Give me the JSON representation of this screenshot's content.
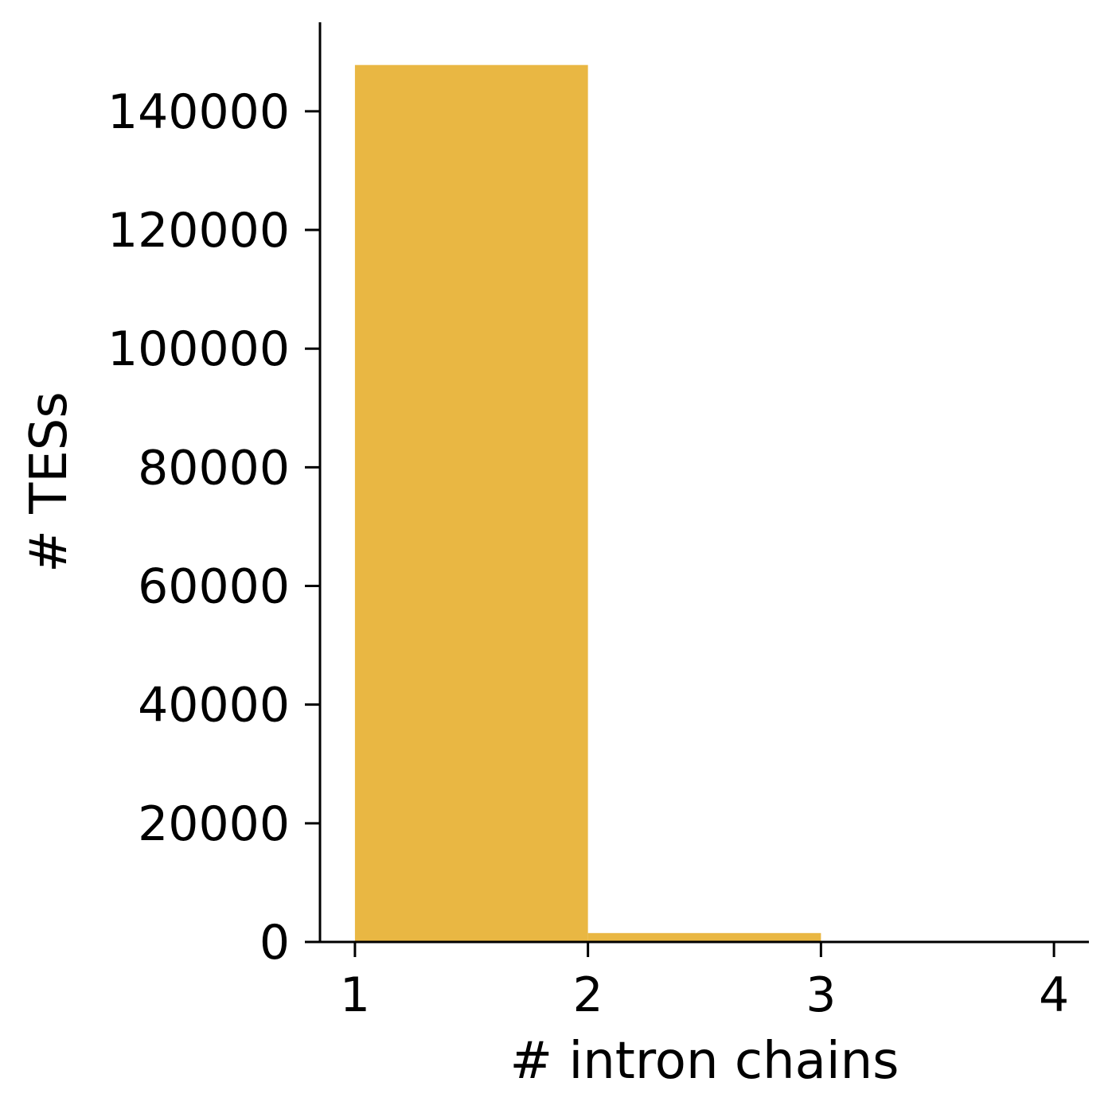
{
  "chart_data": {
    "type": "histogram",
    "xlabel": "# intron chains",
    "ylabel": "# TESs",
    "bins": [
      {
        "start": 1,
        "end": 2,
        "value": 147800
      },
      {
        "start": 2,
        "end": 3,
        "value": 1500
      },
      {
        "start": 3,
        "end": 4,
        "value": 0
      }
    ],
    "xlim": [
      0.85,
      4.15
    ],
    "ylim": [
      0,
      155000
    ],
    "x_ticks": [
      1,
      2,
      3,
      4
    ],
    "x_tick_labels": [
      "1",
      "2",
      "3",
      "4"
    ],
    "y_ticks": [
      0,
      20000,
      40000,
      60000,
      80000,
      100000,
      120000,
      140000
    ],
    "y_tick_labels": [
      "0",
      "20000",
      "40000",
      "60000",
      "80000",
      "100000",
      "120000",
      "140000"
    ],
    "bar_color": "#E9B743",
    "grid": false,
    "spines": [
      "left",
      "bottom"
    ]
  }
}
